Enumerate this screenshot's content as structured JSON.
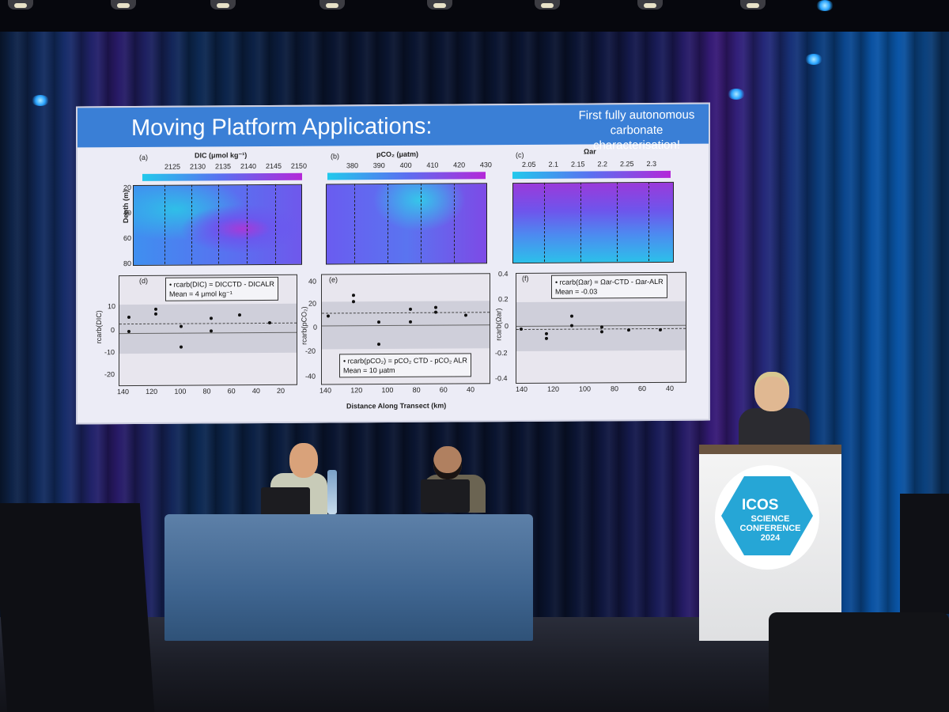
{
  "slide": {
    "title": "Moving Platform Applications:",
    "subtitle": "First fully autonomous carbonate characterisation!",
    "x_axis_label": "Distance Along Transect (km)",
    "depth_label": "Depth (m)",
    "depth_ticks": [
      "20",
      "40",
      "60",
      "80"
    ],
    "x_ticks": [
      "140",
      "120",
      "100",
      "80",
      "60",
      "40",
      "20"
    ],
    "panels": [
      {
        "tag": "(a)",
        "var_label": "DIC (μmol kg⁻¹)",
        "cbar_ticks": [
          "2125",
          "2130",
          "2135",
          "2140",
          "2145",
          "2150"
        ]
      },
      {
        "tag": "(b)",
        "var_label": "pCO₂ (μatm)",
        "cbar_ticks": [
          "380",
          "390",
          "400",
          "410",
          "420",
          "430"
        ]
      },
      {
        "tag": "(c)",
        "var_label": "Ωar",
        "cbar_ticks": [
          "2.05",
          "2.1",
          "2.15",
          "2.2",
          "2.25",
          "2.3"
        ]
      }
    ],
    "residuals": [
      {
        "tag": "(d)",
        "ylabel": "rcarb(DIC)",
        "yticks": [
          "10",
          "0",
          "-10",
          "-20"
        ],
        "legend1": "• rcarb(DIC) = DICCTD - DICALR",
        "legend2": "Mean = 4 μmol kg⁻¹"
      },
      {
        "tag": "(e)",
        "ylabel": "rcarb(pCO₂)",
        "yticks": [
          "40",
          "20",
          "0",
          "-20",
          "-40"
        ],
        "legend1": "• rcarb(pCO₂) = pCO₂ CTD - pCO₂ ALR",
        "legend2": "Mean = 10 μatm"
      },
      {
        "tag": "(f)",
        "ylabel": "rcarb(Ωar)",
        "yticks": [
          "0.4",
          "0.2",
          "0",
          "-0.2",
          "-0.4"
        ],
        "legend1": "• rcarb(Ωar) = Ωar-CTD - Ωar-ALR",
        "legend2": "Mean = -0.03"
      }
    ]
  },
  "lectern": {
    "logo_line1": "ICOS",
    "logo_line2": "SCIENCE CONFERENCE 2024"
  },
  "colors": {
    "slide_header": "#3a7fd6",
    "colormap_low": "#22c9ec",
    "colormap_mid": "#5b6ff0",
    "colormap_high": "#b428d8",
    "logo": "#26a6d6"
  }
}
